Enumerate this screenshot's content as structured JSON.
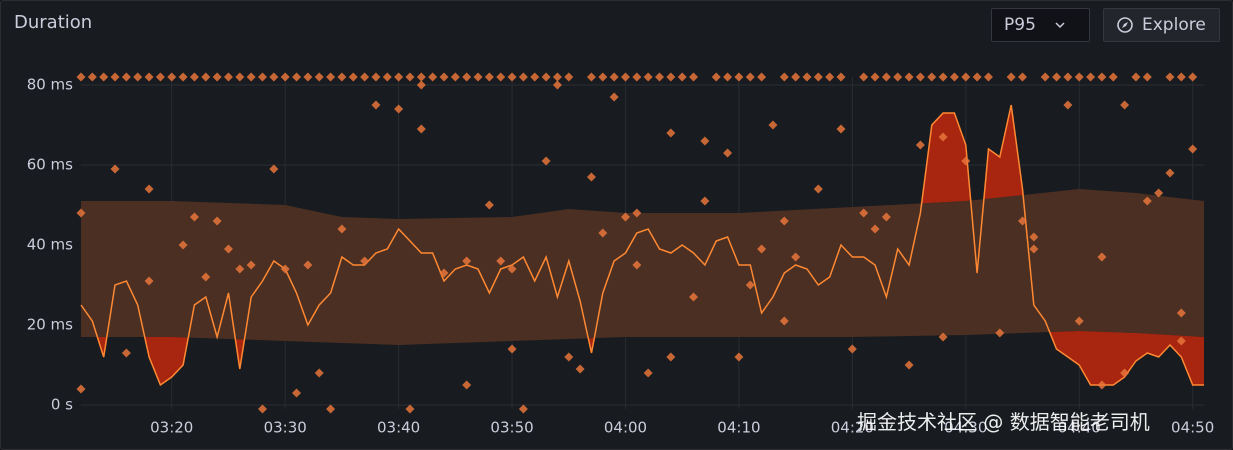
{
  "header": {
    "title": "Duration",
    "percentile": "P95",
    "explore": "Explore"
  },
  "watermark": "掘金技术社区 @ 数据智能老司机",
  "chart_data": {
    "type": "line",
    "x": [
      "03:12",
      "03:13",
      "03:14",
      "03:15",
      "03:16",
      "03:17",
      "03:18",
      "03:19",
      "03:20",
      "03:21",
      "03:22",
      "03:23",
      "03:24",
      "03:25",
      "03:26",
      "03:27",
      "03:28",
      "03:29",
      "03:30",
      "03:31",
      "03:32",
      "03:33",
      "03:34",
      "03:35",
      "03:36",
      "03:37",
      "03:38",
      "03:39",
      "03:40",
      "03:41",
      "03:42",
      "03:43",
      "03:44",
      "03:45",
      "03:46",
      "03:47",
      "03:48",
      "03:49",
      "03:50",
      "03:51",
      "03:52",
      "03:53",
      "03:54",
      "03:55",
      "03:56",
      "03:57",
      "03:58",
      "03:59",
      "04:00",
      "04:01",
      "04:02",
      "04:03",
      "04:04",
      "04:05",
      "04:06",
      "04:07",
      "04:08",
      "04:09",
      "04:10",
      "04:11",
      "04:12",
      "04:13",
      "04:14",
      "04:15",
      "04:16",
      "04:17",
      "04:18",
      "04:19",
      "04:20",
      "04:21",
      "04:22",
      "04:23",
      "04:24",
      "04:25",
      "04:26",
      "04:27",
      "04:28",
      "04:29",
      "04:30",
      "04:31",
      "04:32",
      "04:33",
      "04:34",
      "04:35",
      "04:36",
      "04:37",
      "04:38",
      "04:39",
      "04:40",
      "04:41",
      "04:42",
      "04:43",
      "04:44",
      "04:45",
      "04:46",
      "04:47",
      "04:48",
      "04:49",
      "04:50",
      "04:51"
    ],
    "series": [
      {
        "color": "#ff8833",
        "values": [
          25,
          21,
          12,
          30,
          31,
          25,
          12,
          5,
          7,
          10,
          25,
          27,
          17,
          28,
          9,
          27,
          31,
          36,
          34,
          28,
          20,
          25,
          28,
          37,
          35,
          35,
          38,
          39,
          44,
          41,
          38,
          38,
          31,
          34,
          35,
          34,
          28,
          34,
          35,
          37,
          31,
          37,
          27,
          36,
          26,
          13,
          28,
          36,
          38,
          43,
          44,
          39,
          38,
          40,
          38,
          35,
          41,
          42,
          35,
          35,
          23,
          27,
          33,
          35,
          34,
          30,
          32,
          40,
          37,
          37,
          35,
          27,
          39,
          35,
          48,
          70,
          73,
          73,
          65,
          33,
          64,
          62,
          75,
          54,
          25,
          21,
          14,
          12,
          10,
          5,
          5,
          5,
          7,
          11,
          13,
          12,
          15,
          12,
          5,
          5
        ]
      }
    ],
    "band": {
      "color": "#4a2f22",
      "exceed_color": "#a8260f",
      "x": [
        "03:12",
        "03:20",
        "03:30",
        "03:35",
        "03:40",
        "03:50",
        "03:55",
        "04:00",
        "04:10",
        "04:20",
        "04:30",
        "04:40",
        "04:45",
        "04:51"
      ],
      "upper": [
        51,
        51,
        50,
        47,
        46.5,
        47,
        49,
        48,
        48,
        49.5,
        51,
        54,
        53,
        51
      ],
      "lower": [
        17,
        17,
        16,
        15.5,
        15,
        16,
        16.5,
        17,
        17,
        17,
        17.5,
        18.5,
        18,
        17
      ]
    },
    "points": [
      {
        "color": "#e8743b",
        "x": [
          "03:12",
          "03:12",
          "03:15",
          "03:16",
          "03:18",
          "03:18",
          "03:21",
          "03:22",
          "03:23",
          "03:24",
          "03:25",
          "03:26",
          "03:27",
          "03:28",
          "03:29",
          "03:30",
          "03:31",
          "03:32",
          "03:33",
          "03:35",
          "03:34",
          "03:37",
          "03:38",
          "03:40",
          "03:41",
          "03:42",
          "03:42",
          "03:44",
          "03:46",
          "03:46",
          "03:48",
          "03:49",
          "03:50",
          "03:50",
          "03:51",
          "03:53",
          "03:54",
          "03:55",
          "03:56",
          "03:57",
          "03:58",
          "03:59",
          "04:00",
          "04:01",
          "04:01",
          "04:02",
          "04:04",
          "04:04",
          "04:06",
          "04:07",
          "04:07",
          "04:09",
          "04:10",
          "04:11",
          "04:12",
          "04:13",
          "04:14",
          "04:14",
          "04:15",
          "04:17",
          "04:19",
          "04:20",
          "04:21",
          "04:22",
          "04:23",
          "04:25",
          "04:26",
          "04:28",
          "04:28",
          "04:30",
          "04:33",
          "04:35",
          "04:36",
          "04:36",
          "04:39",
          "04:40",
          "04:42",
          "04:42",
          "04:44",
          "04:44",
          "04:46",
          "04:47",
          "04:48",
          "04:49",
          "04:49",
          "04:50"
        ],
        "values": [
          48,
          4,
          59,
          13,
          31,
          54,
          40,
          47,
          32,
          46,
          39,
          34,
          35,
          -1,
          59,
          34,
          3,
          35,
          8,
          44,
          -1,
          36,
          75,
          74,
          -1,
          69,
          80,
          33,
          5,
          36,
          50,
          36,
          14,
          34,
          -1,
          61,
          80,
          12,
          9,
          57,
          43,
          77,
          47,
          35,
          48,
          8,
          12,
          68,
          27,
          66,
          51,
          63,
          12,
          30,
          39,
          70,
          21,
          46,
          37,
          54,
          69,
          14,
          48,
          44,
          47,
          10,
          65,
          17,
          67,
          61,
          18,
          46,
          39,
          42,
          75,
          21,
          37,
          5,
          75,
          8,
          51,
          53,
          58,
          16,
          23,
          64
        ]
      },
      {
        "color": "#e8743b",
        "x": [
          "03:12",
          "03:13",
          "03:14",
          "03:15",
          "03:16",
          "03:17",
          "03:18",
          "03:19",
          "03:20",
          "03:21",
          "03:22",
          "03:23",
          "03:24",
          "03:25",
          "03:26",
          "03:27",
          "03:28",
          "03:29",
          "03:30",
          "03:31",
          "03:32",
          "03:33",
          "03:34",
          "03:35",
          "03:36",
          "03:37",
          "03:38",
          "03:39",
          "03:40",
          "03:41",
          "03:42",
          "03:43",
          "03:44",
          "03:45",
          "03:46",
          "03:47",
          "03:48",
          "03:49",
          "03:50",
          "03:51",
          "03:52",
          "03:53",
          "03:54",
          "03:55",
          "03:57",
          "03:58",
          "03:59",
          "04:00",
          "04:01",
          "04:02",
          "04:03",
          "04:04",
          "04:05",
          "04:06",
          "04:08",
          "04:09",
          "04:10",
          "04:11",
          "04:12",
          "04:14",
          "04:15",
          "04:16",
          "04:17",
          "04:18",
          "04:19",
          "04:21",
          "04:22",
          "04:23",
          "04:24",
          "04:25",
          "04:26",
          "04:27",
          "04:28",
          "04:29",
          "04:30",
          "04:31",
          "04:32",
          "04:34",
          "04:35",
          "04:37",
          "04:38",
          "04:39",
          "04:40",
          "04:41",
          "04:42",
          "04:43",
          "04:45",
          "04:46",
          "04:48",
          "04:49",
          "04:50"
        ],
        "values": [
          82,
          82,
          82,
          82,
          82,
          82,
          82,
          82,
          82,
          82,
          82,
          82,
          82,
          82,
          82,
          82,
          82,
          82,
          82,
          82,
          82,
          82,
          82,
          82,
          82,
          82,
          82,
          82,
          82,
          82,
          82,
          82,
          82,
          82,
          82,
          82,
          82,
          82,
          82,
          82,
          82,
          82,
          82,
          82,
          82,
          82,
          82,
          82,
          82,
          82,
          82,
          82,
          82,
          82,
          82,
          82,
          82,
          82,
          82,
          82,
          82,
          82,
          82,
          82,
          82,
          82,
          82,
          82,
          82,
          82,
          82,
          82,
          82,
          82,
          82,
          82,
          82,
          82,
          82,
          82,
          82,
          82,
          82,
          82,
          82,
          82,
          82,
          82,
          82,
          82,
          82
        ]
      }
    ],
    "xlim": [
      "03:12",
      "04:51"
    ],
    "xticks": [
      "03:20",
      "03:30",
      "03:40",
      "03:50",
      "04:00",
      "04:10",
      "04:20",
      "04:30",
      "04:40",
      "04:50"
    ],
    "ylim": [
      -2,
      84
    ],
    "yticks": [
      {
        "value": 0,
        "label": "0 s"
      },
      {
        "value": 20,
        "label": "20 ms"
      },
      {
        "value": 40,
        "label": "40 ms"
      },
      {
        "value": 60,
        "label": "60 ms"
      },
      {
        "value": 80,
        "label": "80 ms"
      }
    ],
    "grid": true
  }
}
